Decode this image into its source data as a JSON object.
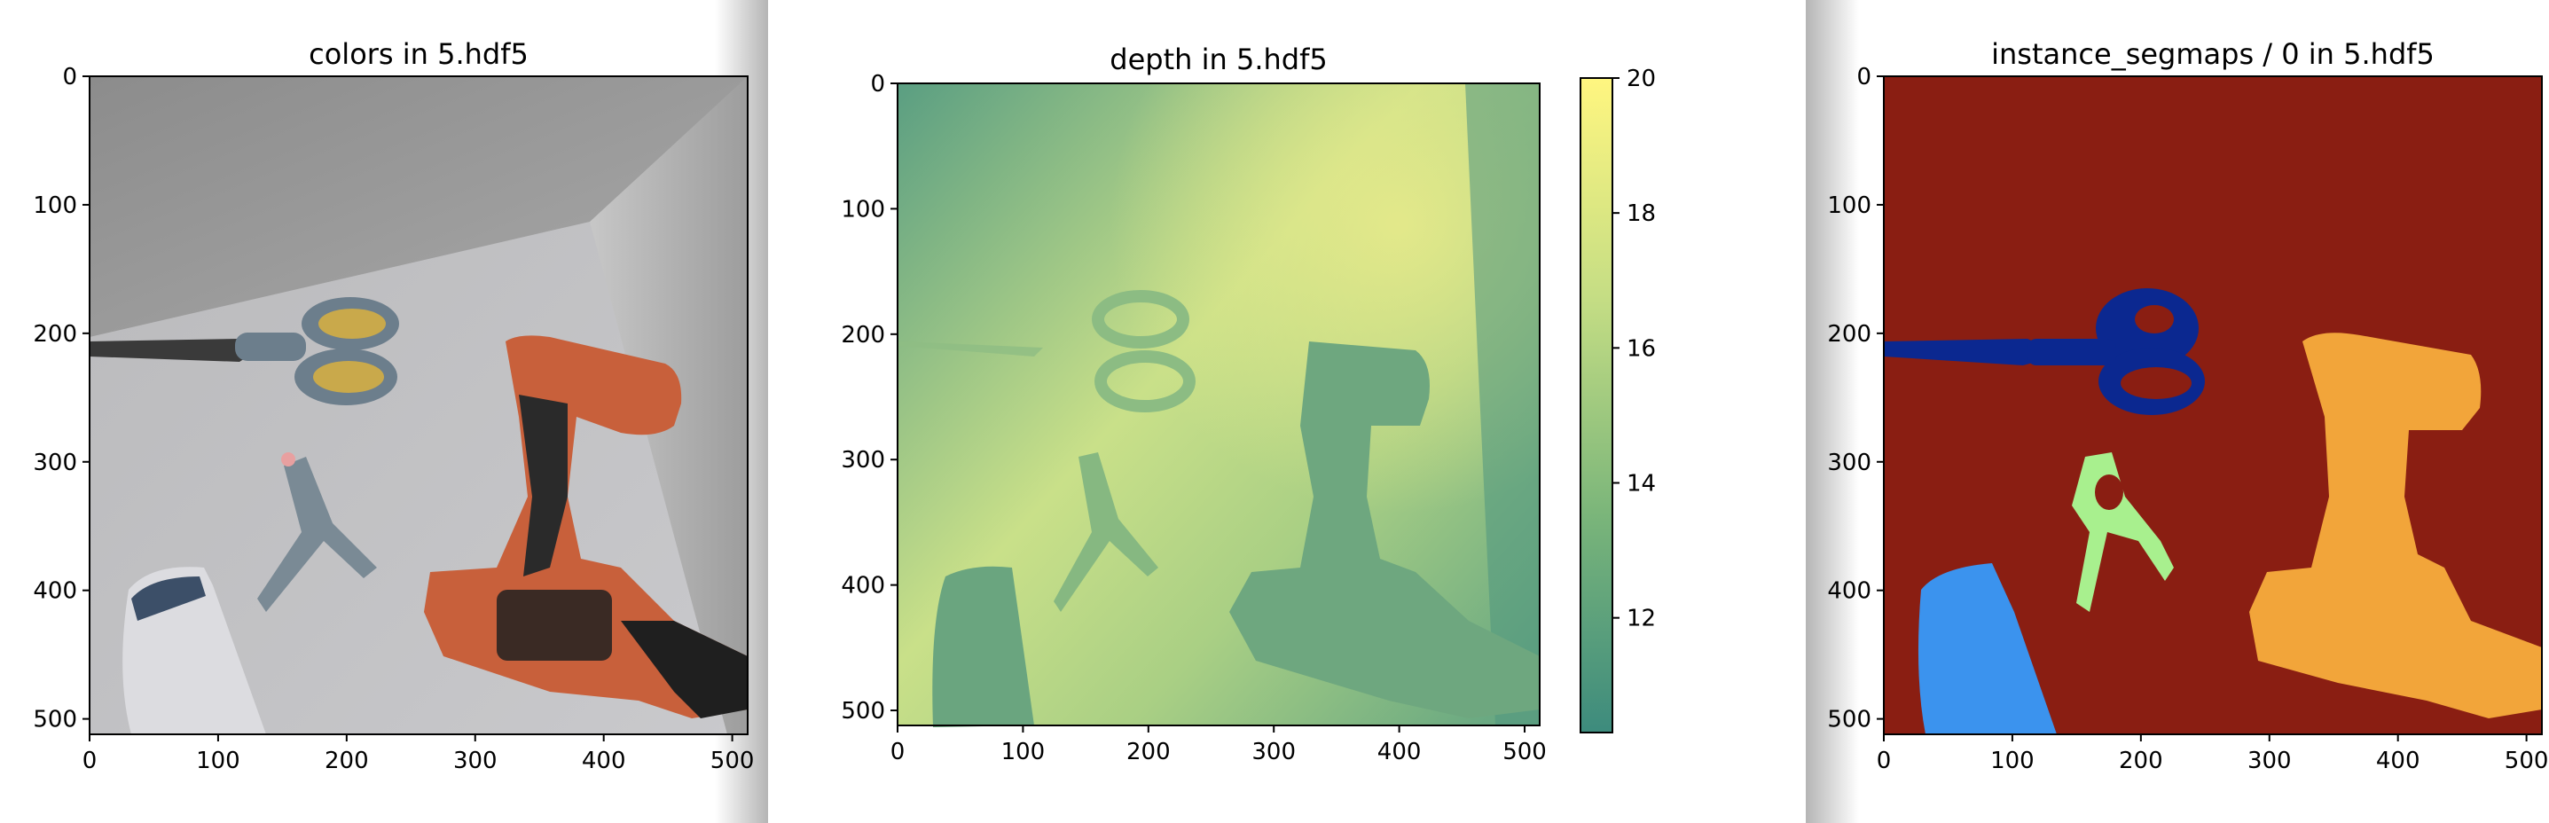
{
  "chart_data": [
    {
      "type": "image",
      "title": "colors in 5.hdf5",
      "xlim": [
        0,
        512
      ],
      "ylim": [
        512,
        0
      ],
      "x_ticks": [
        0,
        100,
        200,
        300,
        400,
        500
      ],
      "y_ticks": [
        0,
        100,
        200,
        300,
        400,
        500
      ],
      "x_tick_labels": [
        "0",
        "100",
        "200",
        "300",
        "400",
        "500"
      ],
      "y_tick_labels": [
        "0",
        "100",
        "200",
        "300",
        "400",
        "500"
      ],
      "objects": [
        "scissors",
        "spring clamp",
        "drill",
        "shampoo bottle"
      ],
      "colors": {
        "background": "#b4b4b4",
        "scissors_handle": "#c9a94b",
        "drill_body": "#c8603b",
        "drill_grip": "#2a2a2a"
      }
    },
    {
      "type": "heatmap",
      "title": "depth in 5.hdf5",
      "xlim": [
        0,
        512
      ],
      "ylim": [
        512,
        0
      ],
      "x_ticks": [
        0,
        100,
        200,
        300,
        400,
        500
      ],
      "y_ticks": [
        0,
        100,
        200,
        300,
        400,
        500
      ],
      "x_tick_labels": [
        "0",
        "100",
        "200",
        "300",
        "400",
        "500"
      ],
      "y_tick_labels": [
        "0",
        "100",
        "200",
        "300",
        "400",
        "500"
      ],
      "colorbar": {
        "range": [
          10.3,
          20
        ],
        "ticks": [
          12,
          14,
          16,
          18,
          20
        ],
        "tick_labels": [
          "12",
          "14",
          "16",
          "18",
          "20"
        ],
        "colors": [
          "#3d8b7d",
          "#7ab57a",
          "#c4dd84",
          "#fff680"
        ]
      }
    },
    {
      "type": "heatmap",
      "title": "instance_segmaps / 0 in 5.hdf5",
      "xlim": [
        0,
        512
      ],
      "ylim": [
        512,
        0
      ],
      "x_ticks": [
        0,
        100,
        200,
        300,
        400,
        500
      ],
      "y_ticks": [
        0,
        100,
        200,
        300,
        400,
        500
      ],
      "x_tick_labels": [
        "0",
        "100",
        "200",
        "300",
        "400",
        "500"
      ],
      "y_tick_labels": [
        "0",
        "100",
        "200",
        "300",
        "400",
        "500"
      ],
      "colors": {
        "background": "#8a1e12",
        "scissors": "#0b2890",
        "clamp": "#a8f08e",
        "drill": "#f2a53a",
        "bottle": "#3b93ee"
      }
    }
  ]
}
